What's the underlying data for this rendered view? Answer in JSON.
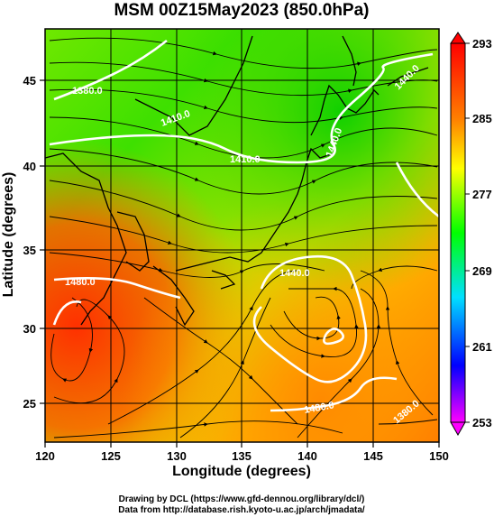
{
  "title": "MSM 00Z15May2023 (850.0hPa)",
  "xlabel": "Longitude (degrees)",
  "ylabel": "Latitude  (degrees)",
  "x_ticks": [
    "120",
    "125",
    "130",
    "135",
    "140",
    "145",
    "150"
  ],
  "y_ticks": [
    "25",
    "30",
    "35",
    "40",
    "45"
  ],
  "colorbar_ticks": [
    "293",
    "285",
    "277",
    "269",
    "261",
    "253"
  ],
  "contour_labels": [
    "1380.0",
    "1410.0",
    "1440.0",
    "1440.0",
    "1480.0",
    "1480.0",
    "1410.0",
    "1440.0",
    "1380.0"
  ],
  "footer": {
    "line1": "Drawing by DCL (https://www.gfd-dennou.org/library/dcl/)",
    "line2": "Data from http://database.rish.kyoto-u.ac.jp/arch/jmadata/"
  },
  "chart_data": {
    "type": "heatmap",
    "title": "MSM 00Z15May2023 (850.0hPa)",
    "xlabel": "Longitude (degrees)",
    "ylabel": "Latitude  (degrees)",
    "xlim": [
      120,
      150
    ],
    "ylim": [
      22.5,
      47.5
    ],
    "x_ticks": [
      120,
      125,
      130,
      135,
      140,
      145,
      150
    ],
    "y_ticks": [
      25,
      30,
      35,
      40,
      45
    ],
    "colorbar": {
      "min": 253,
      "max": 293,
      "ticks": [
        293,
        285,
        277,
        269,
        261,
        253
      ]
    },
    "colormap": [
      "#ff00ff",
      "#0000ff",
      "#00e0ff",
      "#00ff00",
      "#ffff00",
      "#ff8000",
      "#ff0000"
    ],
    "contour_labels": [
      "1380.0",
      "1410.0",
      "1440.0",
      "1440.0",
      "1480.0",
      "1480.0",
      "1410.0",
      "1440.0",
      "1380.0"
    ],
    "overlays": [
      "wind streamlines",
      "geopotential height contours",
      "coastlines",
      "lat-lon grid"
    ],
    "grid": true
  }
}
